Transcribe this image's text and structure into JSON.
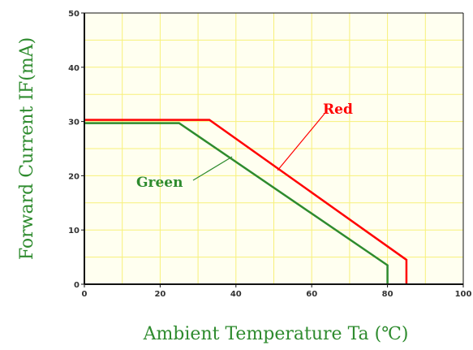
{
  "chart_data": {
    "type": "line",
    "xlabel": "Ambient Temperature Ta (℃)",
    "ylabel": "Forward Current IF(mA)",
    "xlim": [
      0,
      100
    ],
    "ylim": [
      0,
      50
    ],
    "x_ticks": [
      0,
      20,
      40,
      60,
      80,
      100
    ],
    "y_ticks": [
      0,
      10,
      20,
      30,
      40,
      50
    ],
    "grid": true,
    "series": [
      {
        "name": "Red",
        "color": "#ff0000",
        "x": [
          0,
          33,
          85,
          85
        ],
        "y": [
          30.3,
          30.3,
          4.5,
          0
        ]
      },
      {
        "name": "Green",
        "color": "#2e8b2e",
        "x": [
          0,
          25,
          80,
          80
        ],
        "y": [
          29.7,
          29.7,
          3.5,
          0
        ]
      }
    ],
    "annotations": [
      {
        "text": "Red",
        "color": "#ff0000",
        "pointer_to": [
          51,
          21
        ]
      },
      {
        "text": "Green",
        "color": "#2e8b2e",
        "pointer_to": [
          39,
          23.5
        ]
      }
    ],
    "colors": {
      "plot_background": "#fffff0",
      "grid": "#f7f07a",
      "axis_frame": "#111111"
    }
  }
}
